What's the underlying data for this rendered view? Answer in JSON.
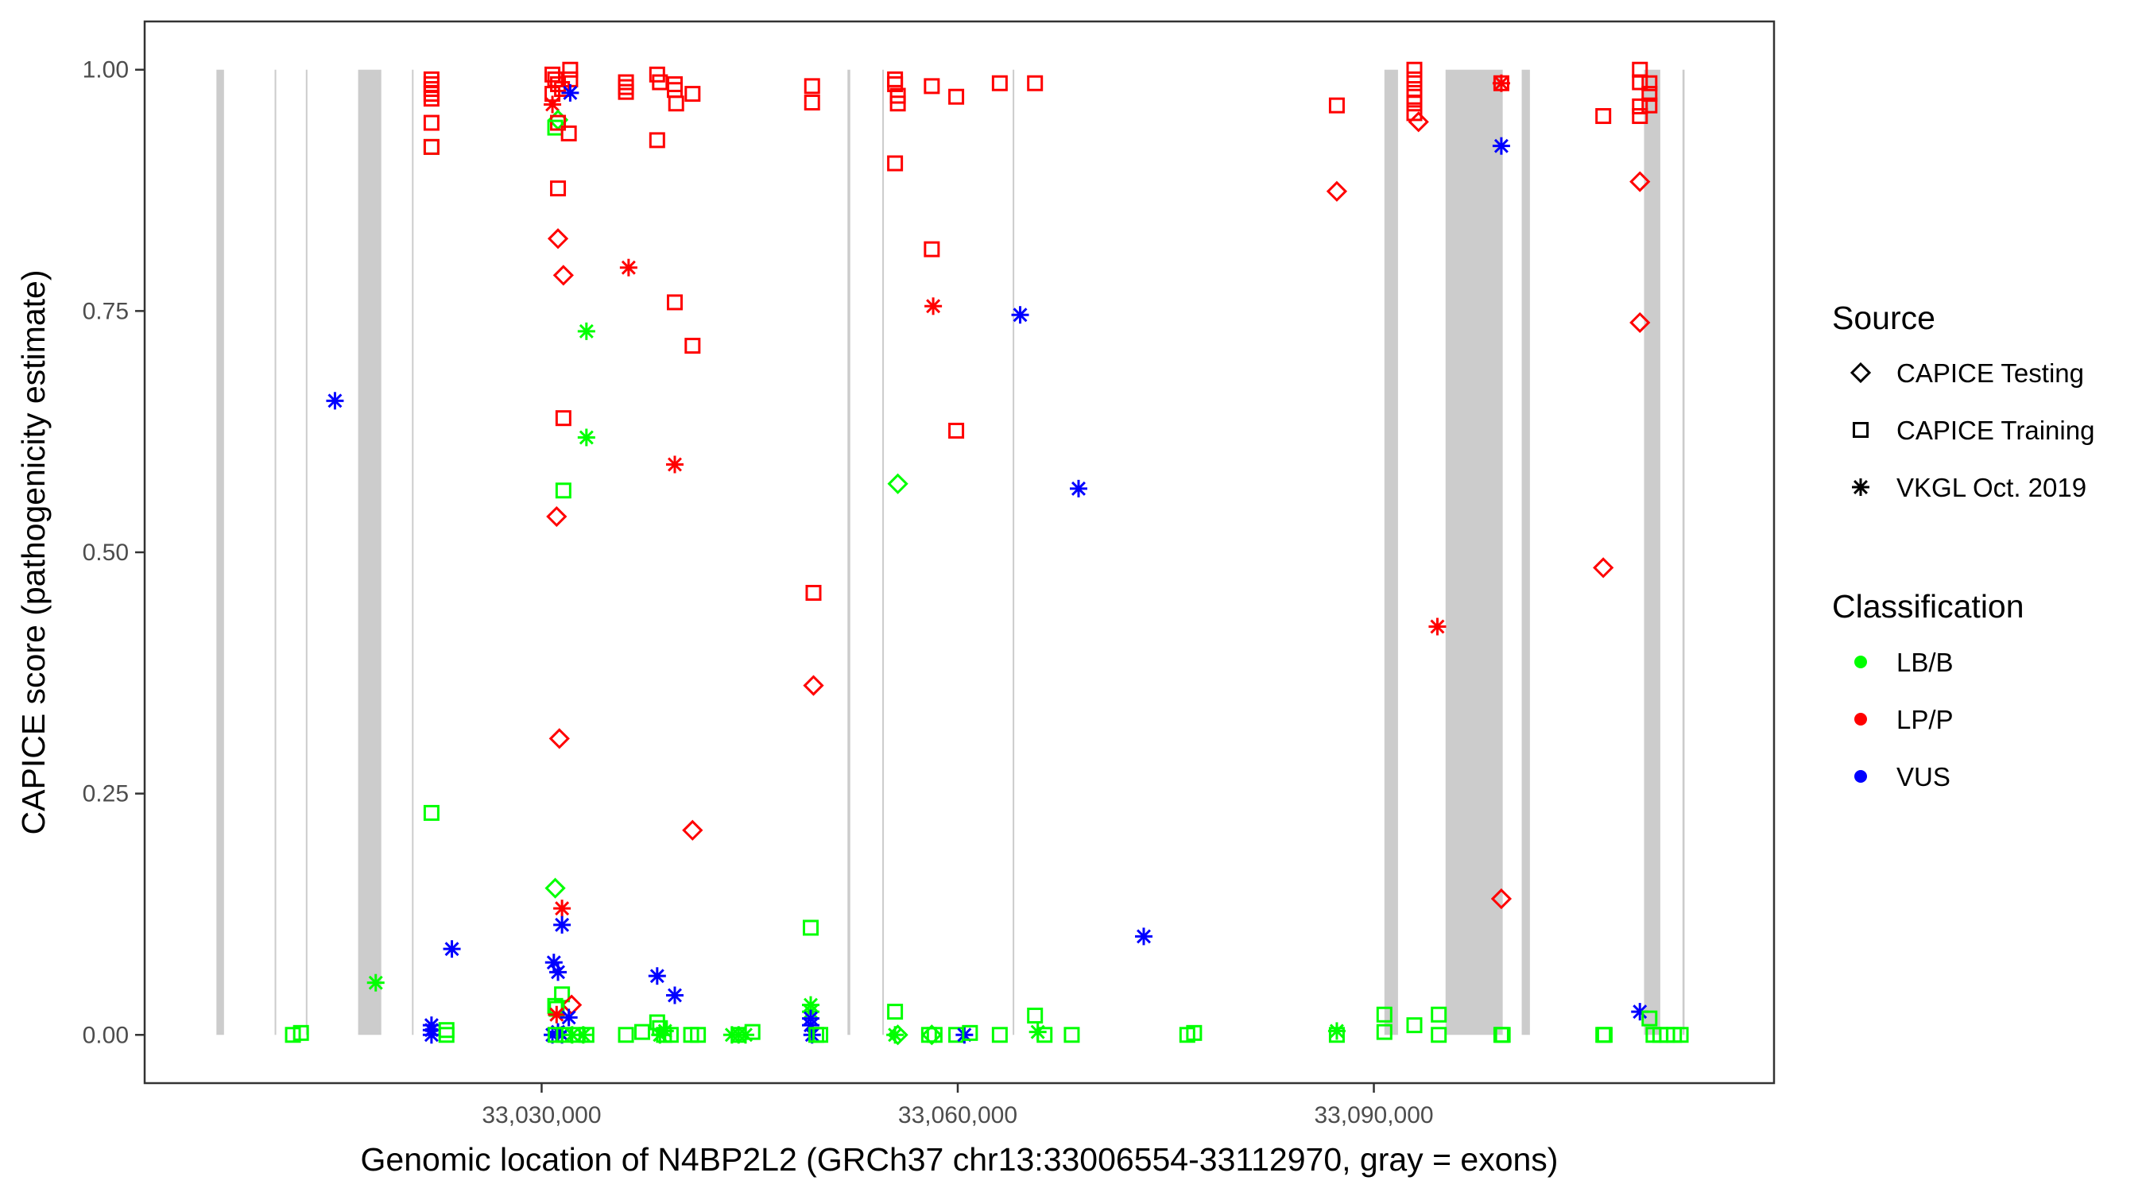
{
  "chart_data": {
    "type": "scatter",
    "xlabel": "Genomic location of N4BP2L2 (GRCh37 chr13:33006554-33112970, gray = exons)",
    "ylabel": "CAPICE score (pathogenicity estimate)",
    "xlim": [
      33001380,
      33118850
    ],
    "ylim": [
      -0.05,
      1.05
    ],
    "x_ticks": [
      33030000,
      33060000,
      33090000
    ],
    "x_tick_labels": [
      "33,030,000",
      "33,060,000",
      "33,090,000"
    ],
    "y_ticks": [
      0,
      0.25,
      0.5,
      0.75,
      1.0
    ],
    "y_tick_labels": [
      "0.00",
      "0.25",
      "0.50",
      "0.75",
      "1.00"
    ],
    "grid": false,
    "legend_placement": "right",
    "colors": {
      "LB/B": "#00FF00",
      "LP/P": "#FF0000",
      "VUS": "#0000FF",
      "exon": "#CCCCCC"
    },
    "exons": [
      [
        33006554,
        33007100
      ],
      [
        33010750,
        33010830
      ],
      [
        33013000,
        33013090
      ],
      [
        33016770,
        33018440
      ],
      [
        33020650,
        33020730
      ],
      [
        33052050,
        33052250
      ],
      [
        33054560,
        33054640
      ],
      [
        33063960,
        33064040
      ],
      [
        33090760,
        33091740
      ],
      [
        33095170,
        33099290
      ],
      [
        33100660,
        33101250
      ],
      [
        33109480,
        33110650
      ],
      [
        33112250,
        33112400
      ]
    ],
    "legend": {
      "source_title": "Source",
      "sources": [
        {
          "key": "D",
          "label": "CAPICE Testing",
          "shape": "diamond"
        },
        {
          "key": "S",
          "label": "CAPICE Training",
          "shape": "square"
        },
        {
          "key": "A",
          "label": "VKGL Oct. 2019",
          "shape": "asterisk"
        }
      ],
      "class_title": "Classification",
      "classes": [
        {
          "key": "LB/B",
          "label": "LB/B"
        },
        {
          "key": "LP/P",
          "label": "LP/P"
        },
        {
          "key": "VUS",
          "label": "VUS"
        }
      ]
    },
    "points": [
      [
        33012070,
        0,
        "S",
        "LB/B"
      ],
      [
        33012650,
        0.002,
        "S",
        "LB/B"
      ],
      [
        33018040,
        0.054,
        "A",
        "LB/B"
      ],
      [
        33015100,
        0.657,
        "A",
        "VUS"
      ],
      [
        33023530,
        0.089,
        "A",
        "VUS"
      ],
      [
        33022060,
        0.99,
        "S",
        "LP/P"
      ],
      [
        33022060,
        0.985,
        "S",
        "LP/P"
      ],
      [
        33022060,
        0.98,
        "S",
        "LP/P"
      ],
      [
        33022060,
        0.975,
        "S",
        "LP/P"
      ],
      [
        33022060,
        0.97,
        "S",
        "LP/P"
      ],
      [
        33022060,
        0.945,
        "S",
        "LP/P"
      ],
      [
        33022060,
        0.92,
        "S",
        "LB/B"
      ],
      [
        33022060,
        0.92,
        "S",
        "LP/P"
      ],
      [
        33022060,
        0.23,
        "S",
        "LB/B"
      ],
      [
        33022060,
        0.01,
        "A",
        "VUS"
      ],
      [
        33022060,
        0.005,
        "A",
        "VUS"
      ],
      [
        33022060,
        0,
        "A",
        "VUS"
      ],
      [
        33023140,
        0.005,
        "S",
        "LB/B"
      ],
      [
        33023140,
        0,
        "S",
        "LB/B"
      ],
      [
        33030780,
        0.995,
        "S",
        "LP/P"
      ],
      [
        33030980,
        0.99,
        "S",
        "LP/P"
      ],
      [
        33031180,
        0.985,
        "S",
        "LP/P"
      ],
      [
        33031470,
        0.98,
        "S",
        "LP/P"
      ],
      [
        33032060,
        1.0,
        "S",
        "LP/P"
      ],
      [
        33032060,
        0.99,
        "S",
        "LP/P"
      ],
      [
        33030780,
        0.975,
        "S",
        "LP/P"
      ],
      [
        33030780,
        0.964,
        "A",
        "LP/P"
      ],
      [
        33031180,
        0.948,
        "D",
        "LB/B"
      ],
      [
        33031180,
        0.945,
        "S",
        "LP/P"
      ],
      [
        33030980,
        0.94,
        "S",
        "LB/B"
      ],
      [
        33031960,
        0.934,
        "S",
        "LP/P"
      ],
      [
        33032060,
        0.976,
        "A",
        "VUS"
      ],
      [
        33031180,
        0.877,
        "S",
        "LP/P"
      ],
      [
        33031180,
        0.825,
        "D",
        "LP/P"
      ],
      [
        33031570,
        0.787,
        "D",
        "LP/P"
      ],
      [
        33031570,
        0.639,
        "S",
        "LP/P"
      ],
      [
        33031570,
        0.564,
        "S",
        "LB/B"
      ],
      [
        33031080,
        0.537,
        "D",
        "LP/P"
      ],
      [
        33031280,
        0.307,
        "D",
        "LP/P"
      ],
      [
        33030980,
        0.152,
        "D",
        "LB/B"
      ],
      [
        33031470,
        0.131,
        "A",
        "LP/P"
      ],
      [
        33031470,
        0.114,
        "A",
        "VUS"
      ],
      [
        33030880,
        0.075,
        "A",
        "VUS"
      ],
      [
        33031180,
        0.065,
        "A",
        "VUS"
      ],
      [
        33031470,
        0.042,
        "S",
        "LB/B"
      ],
      [
        33032160,
        0.031,
        "D",
        "LP/P"
      ],
      [
        33030980,
        0.03,
        "S",
        "LB/B"
      ],
      [
        33031080,
        0.027,
        "S",
        "LB/B"
      ],
      [
        33031080,
        0.021,
        "A",
        "LP/P"
      ],
      [
        33031960,
        0.018,
        "A",
        "VUS"
      ],
      [
        33030780,
        0,
        "A",
        "VUS"
      ],
      [
        33031180,
        0.003,
        "A",
        "VUS"
      ],
      [
        33031470,
        0,
        "A",
        "VUS"
      ],
      [
        33031000,
        0,
        "S",
        "LB/B"
      ],
      [
        33031600,
        0,
        "S",
        "LB/B"
      ],
      [
        33032200,
        0,
        "A",
        "LB/B"
      ],
      [
        33032600,
        0,
        "S",
        "LB/B"
      ],
      [
        33033000,
        0,
        "A",
        "LB/B"
      ],
      [
        33033230,
        0,
        "S",
        "LB/B"
      ],
      [
        33033230,
        0.729,
        "A",
        "LB/B"
      ],
      [
        33033230,
        0.619,
        "A",
        "LB/B"
      ],
      [
        33036080,
        0.987,
        "S",
        "LP/P"
      ],
      [
        33036080,
        0.982,
        "S",
        "LP/P"
      ],
      [
        33036080,
        0.977,
        "S",
        "LP/P"
      ],
      [
        33036270,
        0.795,
        "A",
        "LP/P"
      ],
      [
        33038330,
        0.995,
        "S",
        "LP/P"
      ],
      [
        33038530,
        0.987,
        "S",
        "LP/P"
      ],
      [
        33039600,
        0.985,
        "S",
        "LP/P"
      ],
      [
        33039600,
        0.979,
        "S",
        "LP/P"
      ],
      [
        33039700,
        0.965,
        "S",
        "LP/P"
      ],
      [
        33040880,
        0.975,
        "S",
        "LP/P"
      ],
      [
        33038330,
        0.927,
        "S",
        "LP/P"
      ],
      [
        33039600,
        0.759,
        "S",
        "LP/P"
      ],
      [
        33040880,
        0.714,
        "S",
        "LP/P"
      ],
      [
        33039600,
        0.591,
        "A",
        "LP/P"
      ],
      [
        33040880,
        0.212,
        "D",
        "LP/P"
      ],
      [
        33038330,
        0.061,
        "A",
        "VUS"
      ],
      [
        33039600,
        0.041,
        "A",
        "VUS"
      ],
      [
        33036080,
        0,
        "S",
        "LB/B"
      ],
      [
        33037250,
        0.003,
        "S",
        "LB/B"
      ],
      [
        33038330,
        0.013,
        "S",
        "LB/B"
      ],
      [
        33038530,
        0.007,
        "S",
        "LB/B"
      ],
      [
        33038820,
        0,
        "S",
        "LB/B"
      ],
      [
        33039310,
        0,
        "S",
        "LB/B"
      ],
      [
        33040780,
        0,
        "S",
        "LB/B"
      ],
      [
        33041270,
        0,
        "S",
        "LB/B"
      ],
      [
        33038530,
        0,
        "A",
        "LB/B"
      ],
      [
        33038900,
        0.004,
        "A",
        "LB/B"
      ],
      [
        33043720,
        0,
        "A",
        "LB/B"
      ],
      [
        33044200,
        0,
        "A",
        "LB/B"
      ],
      [
        33044700,
        0,
        "A",
        "LB/B"
      ],
      [
        33044200,
        0,
        "S",
        "LB/B"
      ],
      [
        33045200,
        0.003,
        "S",
        "LB/B"
      ],
      [
        33049500,
        0.983,
        "S",
        "LP/P"
      ],
      [
        33049500,
        0.966,
        "S",
        "LP/P"
      ],
      [
        33049600,
        0.458,
        "S",
        "LP/P"
      ],
      [
        33049600,
        0.362,
        "D",
        "LP/P"
      ],
      [
        33049400,
        0.111,
        "S",
        "LB/B"
      ],
      [
        33049400,
        0.031,
        "A",
        "LB/B"
      ],
      [
        33049400,
        0.024,
        "A",
        "LB/B"
      ],
      [
        33049400,
        0.017,
        "A",
        "VUS"
      ],
      [
        33049400,
        0.01,
        "A",
        "VUS"
      ],
      [
        33049500,
        0,
        "A",
        "VUS"
      ],
      [
        33049800,
        0,
        "S",
        "LB/B"
      ],
      [
        33050090,
        0,
        "S",
        "LB/B"
      ],
      [
        33055480,
        0.99,
        "S",
        "LP/P"
      ],
      [
        33055480,
        0.985,
        "S",
        "LP/P"
      ],
      [
        33055680,
        0.973,
        "S",
        "LP/P"
      ],
      [
        33055680,
        0.965,
        "S",
        "LP/P"
      ],
      [
        33055480,
        0.903,
        "S",
        "LP/P"
      ],
      [
        33055680,
        0.571,
        "D",
        "LB/B"
      ],
      [
        33055480,
        0.024,
        "S",
        "LB/B"
      ],
      [
        33055480,
        0,
        "A",
        "LB/B"
      ],
      [
        33055680,
        0,
        "D",
        "LB/B"
      ],
      [
        33058130,
        0.983,
        "S",
        "LP/P"
      ],
      [
        33058130,
        0.814,
        "S",
        "LP/P"
      ],
      [
        33058230,
        0.755,
        "A",
        "LP/P"
      ],
      [
        33057930,
        0,
        "S",
        "LB/B"
      ],
      [
        33058330,
        0,
        "S",
        "LB/B"
      ],
      [
        33058130,
        0,
        "D",
        "LB/B"
      ],
      [
        33059890,
        0.972,
        "S",
        "LP/P"
      ],
      [
        33059890,
        0.626,
        "S",
        "LP/P"
      ],
      [
        33059890,
        0,
        "S",
        "LB/B"
      ],
      [
        33060480,
        0,
        "A",
        "VUS"
      ],
      [
        33060880,
        0.002,
        "S",
        "LB/B"
      ],
      [
        33063030,
        0.986,
        "S",
        "LP/P"
      ],
      [
        33063030,
        0,
        "S",
        "LB/B"
      ],
      [
        33064500,
        0.746,
        "A",
        "VUS"
      ],
      [
        33065570,
        0.986,
        "S",
        "LP/P"
      ],
      [
        33065570,
        0.02,
        "S",
        "LB/B"
      ],
      [
        33065770,
        0.003,
        "A",
        "LB/B"
      ],
      [
        33066260,
        0,
        "S",
        "LB/B"
      ],
      [
        33068220,
        0,
        "S",
        "LB/B"
      ],
      [
        33068710,
        0.566,
        "A",
        "VUS"
      ],
      [
        33073410,
        0.102,
        "A",
        "VUS"
      ],
      [
        33076550,
        0,
        "S",
        "LB/B"
      ],
      [
        33077040,
        0.002,
        "S",
        "LB/B"
      ],
      [
        33087330,
        0.963,
        "S",
        "LP/P"
      ],
      [
        33087330,
        0.874,
        "D",
        "LP/P"
      ],
      [
        33087330,
        0.004,
        "A",
        "LB/B"
      ],
      [
        33087330,
        0,
        "S",
        "LB/B"
      ],
      [
        33090760,
        0.021,
        "S",
        "LB/B"
      ],
      [
        33090760,
        0.003,
        "S",
        "LB/B"
      ],
      [
        33092920,
        1.0,
        "S",
        "LP/P"
      ],
      [
        33092920,
        0.99,
        "S",
        "LP/P"
      ],
      [
        33092920,
        0.98,
        "S",
        "LP/P"
      ],
      [
        33092920,
        0.972,
        "S",
        "LP/P"
      ],
      [
        33092920,
        0.965,
        "S",
        "LP/P"
      ],
      [
        33092920,
        0.955,
        "S",
        "LP/P"
      ],
      [
        33093220,
        0.946,
        "D",
        "LP/P"
      ],
      [
        33092920,
        0.01,
        "S",
        "LB/B"
      ],
      [
        33094580,
        0.423,
        "A",
        "LP/P"
      ],
      [
        33094680,
        0.021,
        "S",
        "LB/B"
      ],
      [
        33094680,
        0,
        "S",
        "LB/B"
      ],
      [
        33099190,
        0.986,
        "A",
        "LP/P"
      ],
      [
        33099190,
        0.986,
        "S",
        "LP/P"
      ],
      [
        33099190,
        0.921,
        "A",
        "VUS"
      ],
      [
        33099190,
        0.141,
        "D",
        "LP/P"
      ],
      [
        33099190,
        0,
        "S",
        "LB/B"
      ],
      [
        33099290,
        0,
        "S",
        "LB/B"
      ],
      [
        33106540,
        0.952,
        "S",
        "LP/P"
      ],
      [
        33106540,
        0.484,
        "D",
        "LP/P"
      ],
      [
        33106540,
        0,
        "S",
        "LB/B"
      ],
      [
        33106640,
        0,
        "S",
        "LB/B"
      ],
      [
        33109180,
        1.0,
        "S",
        "LP/P"
      ],
      [
        33109180,
        0.987,
        "S",
        "LP/P"
      ],
      [
        33109180,
        0.962,
        "S",
        "LP/P"
      ],
      [
        33109180,
        0.952,
        "S",
        "LP/P"
      ],
      [
        33109180,
        0.884,
        "D",
        "LP/P"
      ],
      [
        33109180,
        0.738,
        "D",
        "LP/P"
      ],
      [
        33109180,
        0.024,
        "A",
        "VUS"
      ],
      [
        33109870,
        0.986,
        "S",
        "LP/P"
      ],
      [
        33109870,
        0.975,
        "S",
        "LP/P"
      ],
      [
        33109870,
        0.963,
        "S",
        "LP/P"
      ],
      [
        33109870,
        0.017,
        "S",
        "LB/B"
      ],
      [
        33110160,
        0,
        "S",
        "LB/B"
      ],
      [
        33110650,
        0,
        "S",
        "LB/B"
      ],
      [
        33111140,
        0,
        "S",
        "LB/B"
      ],
      [
        33111640,
        0,
        "S",
        "LB/B"
      ],
      [
        33112120,
        0,
        "S",
        "LB/B"
      ]
    ]
  }
}
